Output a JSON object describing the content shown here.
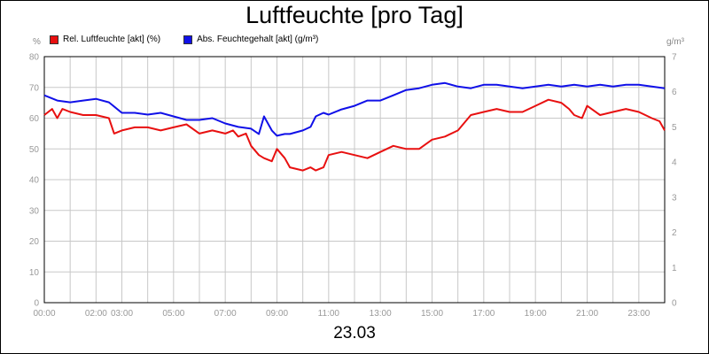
{
  "title": "Luftfeuchte [pro Tag]",
  "date_label": "23.03",
  "colors": {
    "rel": "#e81010",
    "abs": "#1010e8",
    "grid": "#c8c8c8"
  },
  "chart_data": {
    "type": "line",
    "title": "Luftfeuchte [pro Tag]",
    "xlabel": "23.03",
    "x_ticks": [
      "00:00",
      "02:00",
      "03:00",
      "05:00",
      "07:00",
      "09:00",
      "11:00",
      "13:00",
      "15:00",
      "17:00",
      "19:00",
      "21:00",
      "23:00"
    ],
    "x_tick_hours": [
      0,
      2,
      3,
      5,
      7,
      9,
      11,
      13,
      15,
      17,
      19,
      21,
      23
    ],
    "xlim": [
      0,
      24
    ],
    "y_left": {
      "unit": "%",
      "ylim": [
        0,
        80
      ],
      "ticks": [
        "0",
        "10",
        "20",
        "30",
        "40",
        "50",
        "60",
        "70",
        "80"
      ]
    },
    "y_right": {
      "unit": "g/m³",
      "ylim": [
        0,
        7
      ],
      "ticks": [
        "0",
        "1",
        "2",
        "3",
        "4",
        "5",
        "6",
        "7"
      ]
    },
    "grid": true,
    "legend_position": "top-left",
    "series": [
      {
        "name": "Rel. Luftfeuchte [akt] (%)",
        "axis": "left",
        "x": [
          0,
          0.3,
          0.5,
          0.7,
          1,
          1.5,
          2,
          2.5,
          2.7,
          3,
          3.5,
          4,
          4.5,
          5,
          5.5,
          6,
          6.5,
          7,
          7.3,
          7.5,
          7.8,
          8,
          8.3,
          8.5,
          8.8,
          9,
          9.3,
          9.5,
          10,
          10.3,
          10.5,
          10.8,
          11,
          11.5,
          12,
          12.5,
          13,
          13.5,
          14,
          14.5,
          15,
          15.5,
          16,
          16.5,
          17,
          17.5,
          18,
          18.5,
          19,
          19.5,
          20,
          20.3,
          20.5,
          20.8,
          21,
          21.5,
          22,
          22.5,
          23,
          23.5,
          23.8,
          24
        ],
        "values": [
          61,
          63,
          60,
          63,
          62,
          61,
          61,
          60,
          55,
          56,
          57,
          57,
          56,
          57,
          58,
          55,
          56,
          55,
          56,
          54,
          55,
          51,
          48,
          47,
          46,
          50,
          47,
          44,
          43,
          44,
          43,
          44,
          48,
          49,
          48,
          47,
          49,
          51,
          50,
          50,
          53,
          54,
          56,
          61,
          62,
          63,
          62,
          62,
          64,
          66,
          65,
          63,
          61,
          60,
          64,
          61,
          62,
          63,
          62,
          60,
          59,
          56
        ]
      },
      {
        "name": "Abs. Feuchtegehalt [akt] (g/m³)",
        "axis": "right",
        "x": [
          0,
          0.5,
          1,
          1.5,
          2,
          2.5,
          3,
          3.5,
          4,
          4.5,
          5,
          5.5,
          6,
          6.5,
          7,
          7.5,
          8,
          8.3,
          8.5,
          8.8,
          9,
          9.3,
          9.5,
          10,
          10.3,
          10.5,
          10.8,
          11,
          11.5,
          12,
          12.5,
          13,
          13.5,
          14,
          14.5,
          15,
          15.5,
          16,
          16.5,
          17,
          17.5,
          18,
          18.5,
          19,
          19.5,
          20,
          20.5,
          21,
          21.5,
          22,
          22.5,
          23,
          23.5,
          24
        ],
        "values": [
          5.9,
          5.75,
          5.7,
          5.75,
          5.8,
          5.7,
          5.4,
          5.4,
          5.35,
          5.4,
          5.3,
          5.2,
          5.2,
          5.25,
          5.1,
          5.0,
          4.95,
          4.8,
          5.3,
          4.9,
          4.75,
          4.8,
          4.8,
          4.9,
          5.0,
          5.3,
          5.4,
          5.35,
          5.5,
          5.6,
          5.75,
          5.75,
          5.9,
          6.05,
          6.1,
          6.2,
          6.25,
          6.15,
          6.1,
          6.2,
          6.2,
          6.15,
          6.1,
          6.15,
          6.2,
          6.15,
          6.2,
          6.15,
          6.2,
          6.15,
          6.2,
          6.2,
          6.15,
          6.1
        ]
      }
    ]
  }
}
